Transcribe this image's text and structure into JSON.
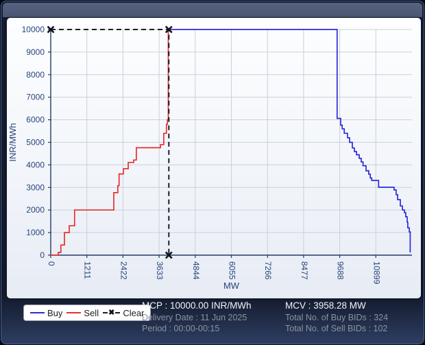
{
  "window": {
    "title": ""
  },
  "chart_data": {
    "type": "line",
    "title": "",
    "xlabel": "MW",
    "ylabel": "INR/MWh",
    "xlim": [
      0,
      12110
    ],
    "ylim": [
      0,
      10000
    ],
    "x_ticks": [
      0,
      1211,
      2422,
      3633,
      4844,
      6055,
      7266,
      8477,
      9688,
      10899
    ],
    "y_ticks": [
      0,
      1000,
      2000,
      3000,
      4000,
      5000,
      6000,
      7000,
      8000,
      9000,
      10000
    ],
    "grid": true,
    "legend_position": "bottom-left",
    "clearing_point": {
      "mcv_mw": 3958.28,
      "mcp_inr_mwh": 10000.0
    },
    "series": [
      {
        "name": "Buy",
        "color": "#2c2cd6",
        "style": "solid",
        "points": [
          [
            3958.28,
            10000
          ],
          [
            9600,
            10000
          ],
          [
            9600,
            6060
          ],
          [
            9720,
            6060
          ],
          [
            9720,
            5760
          ],
          [
            9770,
            5760
          ],
          [
            9770,
            5600
          ],
          [
            9840,
            5600
          ],
          [
            9840,
            5400
          ],
          [
            9950,
            5400
          ],
          [
            9950,
            5200
          ],
          [
            10020,
            5200
          ],
          [
            10020,
            5000
          ],
          [
            10110,
            5000
          ],
          [
            10110,
            4750
          ],
          [
            10180,
            4750
          ],
          [
            10180,
            4590
          ],
          [
            10250,
            4590
          ],
          [
            10250,
            4450
          ],
          [
            10340,
            4450
          ],
          [
            10340,
            4290
          ],
          [
            10410,
            4290
          ],
          [
            10410,
            4130
          ],
          [
            10470,
            4130
          ],
          [
            10470,
            3960
          ],
          [
            10570,
            3960
          ],
          [
            10570,
            3740
          ],
          [
            10660,
            3740
          ],
          [
            10660,
            3590
          ],
          [
            10710,
            3590
          ],
          [
            10710,
            3420
          ],
          [
            10760,
            3420
          ],
          [
            10760,
            3310
          ],
          [
            10990,
            3310
          ],
          [
            10990,
            3010
          ],
          [
            11510,
            3010
          ],
          [
            11510,
            2890
          ],
          [
            11580,
            2890
          ],
          [
            11580,
            2680
          ],
          [
            11630,
            2680
          ],
          [
            11630,
            2460
          ],
          [
            11720,
            2460
          ],
          [
            11720,
            2180
          ],
          [
            11790,
            2180
          ],
          [
            11790,
            2000
          ],
          [
            11860,
            2000
          ],
          [
            11860,
            1880
          ],
          [
            11900,
            1880
          ],
          [
            11900,
            1700
          ],
          [
            11950,
            1700
          ],
          [
            11950,
            1460
          ],
          [
            11970,
            1460
          ],
          [
            11970,
            1210
          ],
          [
            12020,
            1210
          ],
          [
            12020,
            1030
          ],
          [
            12050,
            1030
          ],
          [
            12050,
            120
          ]
        ]
      },
      {
        "name": "Sell",
        "color": "#e82f2f",
        "style": "solid",
        "points": [
          [
            0,
            0
          ],
          [
            250,
            0
          ],
          [
            250,
            120
          ],
          [
            340,
            120
          ],
          [
            340,
            450
          ],
          [
            460,
            450
          ],
          [
            460,
            1000
          ],
          [
            620,
            1000
          ],
          [
            620,
            1300
          ],
          [
            800,
            1300
          ],
          [
            800,
            2000
          ],
          [
            2115,
            2000
          ],
          [
            2115,
            2770
          ],
          [
            2250,
            2770
          ],
          [
            2250,
            3080
          ],
          [
            2290,
            3080
          ],
          [
            2290,
            3600
          ],
          [
            2435,
            3600
          ],
          [
            2435,
            3830
          ],
          [
            2600,
            3830
          ],
          [
            2600,
            4110
          ],
          [
            2780,
            4110
          ],
          [
            2780,
            4215
          ],
          [
            2870,
            4215
          ],
          [
            2870,
            4760
          ],
          [
            3680,
            4760
          ],
          [
            3680,
            4900
          ],
          [
            3790,
            4900
          ],
          [
            3790,
            5400
          ],
          [
            3880,
            5400
          ],
          [
            3880,
            5800
          ],
          [
            3910,
            5800
          ],
          [
            3910,
            6000
          ],
          [
            3940,
            6000
          ],
          [
            3940,
            10000
          ],
          [
            3958.28,
            10000
          ]
        ]
      },
      {
        "name": "Clear",
        "color": "#1d1d24",
        "style": "dashed",
        "points": [
          [
            0,
            10000
          ],
          [
            3958.28,
            10000
          ],
          [
            3958.28,
            0
          ]
        ],
        "markers": [
          [
            0,
            10000
          ],
          [
            3958.28,
            10000
          ],
          [
            3958.28,
            0
          ]
        ]
      }
    ]
  },
  "legend": {
    "clear_marker": "✖",
    "items": [
      {
        "label": "Buy",
        "color": "#2c2cd6",
        "style": "solid"
      },
      {
        "label": "Sell",
        "color": "#e82f2f",
        "style": "solid"
      },
      {
        "label": "Clear",
        "color": "#1d1d24",
        "style": "dashed-x"
      }
    ]
  },
  "stats": {
    "mcp": "MCP : 10000.00 INR/MWh",
    "delivery_date": "Delivery Date : 11 Jun 2025",
    "period": "Period :  00:00-00:15",
    "mcv": "MCV : 3958.28 MW",
    "buy_bids": "Total No. of Buy BIDs : 324",
    "sell_bids": "Total No. of Sell BIDs : 102"
  },
  "colors": {
    "buy_line": "#2c2cd6",
    "sell_line": "#e82f2f",
    "clear_line": "#1d1d24",
    "axis_label": "#27447c",
    "grid_line": "#cbd0d8",
    "axis_line": "#223a60",
    "titlebar": "#4e5a76",
    "window_bg": "#121a2c",
    "panel_bg": "#f2f5fa",
    "primary_text": "#f4f5f7",
    "secondary_text": "#8d93a0"
  }
}
